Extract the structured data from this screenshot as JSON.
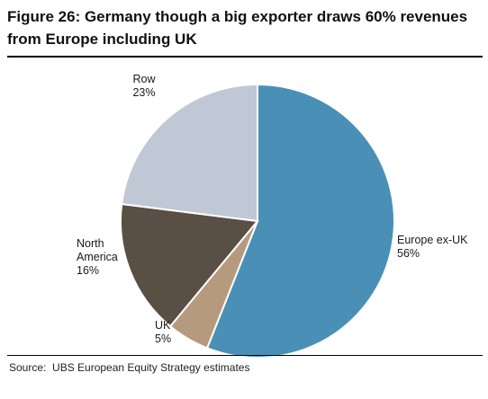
{
  "title": "Figure 26: Germany though a big exporter draws 60% revenues from Europe including UK",
  "source": "Source:  UBS European Equity Strategy estimates",
  "chart_data": {
    "type": "pie",
    "slices": [
      {
        "name": "Europe ex-UK",
        "label_lines": [
          "Europe ex-UK"
        ],
        "value": 56,
        "value_label": "56%",
        "color": "#4a90b6"
      },
      {
        "name": "UK",
        "label_lines": [
          "UK"
        ],
        "value": 5,
        "value_label": "5%",
        "color": "#b59a7e"
      },
      {
        "name": "North America",
        "label_lines": [
          "North",
          "America"
        ],
        "value": 16,
        "value_label": "16%",
        "color": "#5a4f45"
      },
      {
        "name": "Row",
        "label_lines": [
          "Row"
        ],
        "value": 23,
        "value_label": "23%",
        "color": "#c0c8d6"
      }
    ],
    "start_angle_deg": 0,
    "direction": "clockwise",
    "legend": "none",
    "labels": "outside"
  }
}
